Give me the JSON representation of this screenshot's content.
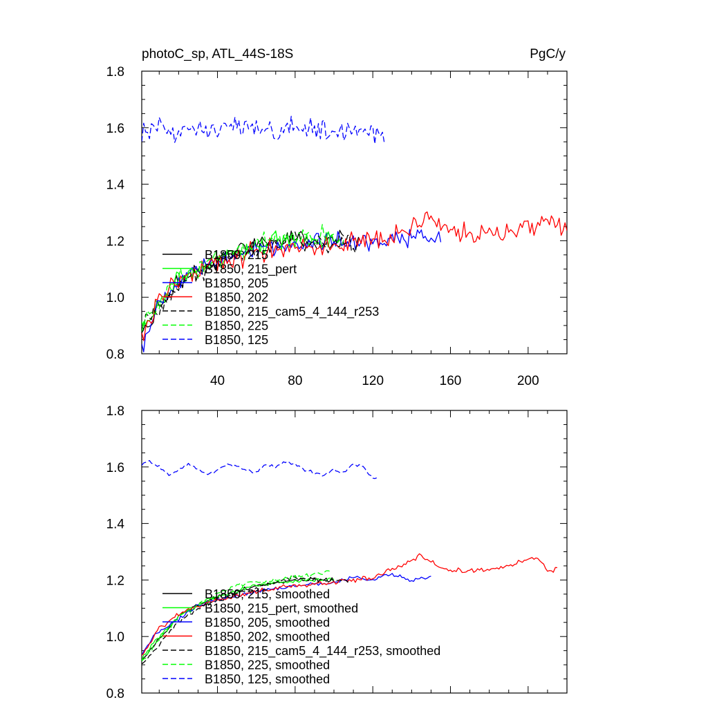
{
  "chart_data": [
    {
      "type": "line",
      "title": "photoC_sp, ATL_44S-18S",
      "units": "PgC/y",
      "xlabel": "",
      "ylabel": "",
      "xlim": [
        1,
        220
      ],
      "ylim": [
        0.8,
        1.8
      ],
      "xticks": [
        40,
        80,
        120,
        160,
        200
      ],
      "xtick_labels": [
        "40",
        "80",
        "120",
        "160",
        "200"
      ],
      "yticks": [
        0.8,
        1.0,
        1.2,
        1.4,
        1.6,
        1.8
      ],
      "ytick_labels": [
        "0.8",
        "1.0",
        "1.2",
        "1.4",
        "1.6",
        "1.8"
      ],
      "legend_position": "lower-left",
      "series": [
        {
          "name": "B1850, 215",
          "color": "#000000",
          "dash": "solid",
          "x_end": 105,
          "anchors": [
            [
              1,
              0.88
            ],
            [
              10,
              0.97
            ],
            [
              20,
              1.05
            ],
            [
              30,
              1.09
            ],
            [
              40,
              1.13
            ],
            [
              50,
              1.16
            ],
            [
              60,
              1.18
            ],
            [
              70,
              1.2
            ],
            [
              80,
              1.21
            ],
            [
              90,
              1.2
            ],
            [
              100,
              1.2
            ],
            [
              105,
              1.2
            ]
          ],
          "noise": 0.04
        },
        {
          "name": "B1850, 215_pert",
          "color": "#00ff00",
          "dash": "solid",
          "x_end": 105,
          "anchors": [
            [
              1,
              0.9
            ],
            [
              10,
              0.98
            ],
            [
              20,
              1.06
            ],
            [
              30,
              1.1
            ],
            [
              40,
              1.13
            ],
            [
              50,
              1.16
            ],
            [
              60,
              1.18
            ],
            [
              70,
              1.2
            ],
            [
              80,
              1.21
            ],
            [
              90,
              1.2
            ],
            [
              100,
              1.2
            ],
            [
              105,
              1.2
            ]
          ],
          "noise": 0.045
        },
        {
          "name": "B1850, 205",
          "color": "#0000ff",
          "dash": "solid",
          "x_end": 155,
          "anchors": [
            [
              1,
              0.82
            ],
            [
              10,
              0.98
            ],
            [
              20,
              1.05
            ],
            [
              30,
              1.1
            ],
            [
              40,
              1.13
            ],
            [
              60,
              1.17
            ],
            [
              80,
              1.19
            ],
            [
              100,
              1.2
            ],
            [
              120,
              1.2
            ],
            [
              140,
              1.21
            ],
            [
              155,
              1.21
            ]
          ],
          "noise": 0.04
        },
        {
          "name": "B1850, 202",
          "color": "#ff0000",
          "dash": "solid",
          "x_end": 220,
          "anchors": [
            [
              1,
              0.86
            ],
            [
              10,
              1.0
            ],
            [
              20,
              1.06
            ],
            [
              40,
              1.12
            ],
            [
              60,
              1.16
            ],
            [
              80,
              1.18
            ],
            [
              100,
              1.19
            ],
            [
              120,
              1.21
            ],
            [
              140,
              1.24
            ],
            [
              150,
              1.27
            ],
            [
              160,
              1.23
            ],
            [
              180,
              1.22
            ],
            [
              200,
              1.25
            ],
            [
              210,
              1.26
            ],
            [
              220,
              1.24
            ]
          ],
          "noise": 0.045
        },
        {
          "name": "B1850, 215_cam5_4_144_r253",
          "color": "#000000",
          "dash": "dashed",
          "x_end": 113,
          "anchors": [
            [
              1,
              0.9
            ],
            [
              10,
              0.96
            ],
            [
              20,
              1.05
            ],
            [
              30,
              1.08
            ],
            [
              40,
              1.12
            ],
            [
              50,
              1.15
            ],
            [
              60,
              1.17
            ],
            [
              70,
              1.19
            ],
            [
              80,
              1.21
            ],
            [
              90,
              1.19
            ],
            [
              100,
              1.19
            ],
            [
              113,
              1.19
            ]
          ],
          "noise": 0.04
        },
        {
          "name": "B1850, 225",
          "color": "#00ff00",
          "dash": "dashed",
          "x_end": 100,
          "anchors": [
            [
              1,
              0.9
            ],
            [
              10,
              0.98
            ],
            [
              20,
              1.06
            ],
            [
              30,
              1.1
            ],
            [
              40,
              1.14
            ],
            [
              50,
              1.17
            ],
            [
              60,
              1.19
            ],
            [
              70,
              1.2
            ],
            [
              80,
              1.21
            ],
            [
              90,
              1.22
            ],
            [
              100,
              1.22
            ]
          ],
          "noise": 0.04
        },
        {
          "name": "B1850, 125",
          "color": "#0000ff",
          "dash": "dashed",
          "x_end": 126,
          "anchors": [
            [
              1,
              1.58
            ],
            [
              10,
              1.61
            ],
            [
              20,
              1.58
            ],
            [
              30,
              1.6
            ],
            [
              40,
              1.59
            ],
            [
              50,
              1.6
            ],
            [
              60,
              1.6
            ],
            [
              70,
              1.58
            ],
            [
              80,
              1.61
            ],
            [
              90,
              1.59
            ],
            [
              100,
              1.58
            ],
            [
              110,
              1.6
            ],
            [
              120,
              1.58
            ],
            [
              126,
              1.57
            ]
          ],
          "noise": 0.045
        }
      ]
    },
    {
      "type": "line",
      "title": "",
      "units": "",
      "xlabel": "",
      "ylabel": "",
      "xlim": [
        1,
        220
      ],
      "ylim": [
        0.8,
        1.8
      ],
      "xticks": [
        40,
        80,
        120,
        160,
        200
      ],
      "xtick_labels": [],
      "yticks": [
        0.8,
        1.0,
        1.2,
        1.4,
        1.6,
        1.8
      ],
      "ytick_labels": [
        "0.8",
        "1.0",
        "1.2",
        "1.4",
        "1.6",
        "1.8"
      ],
      "legend_position": "lower-left",
      "series": [
        {
          "name": "B1850, 215, smoothed",
          "color": "#000000",
          "dash": "solid",
          "x_end": 100,
          "anchors": [
            [
              1,
              0.91
            ],
            [
              10,
              0.99
            ],
            [
              20,
              1.07
            ],
            [
              30,
              1.11
            ],
            [
              40,
              1.14
            ],
            [
              50,
              1.16
            ],
            [
              60,
              1.18
            ],
            [
              70,
              1.19
            ],
            [
              80,
              1.2
            ],
            [
              90,
              1.2
            ],
            [
              100,
              1.2
            ]
          ],
          "noise": 0.01
        },
        {
          "name": "B1850, 215_pert, smoothed",
          "color": "#00ff00",
          "dash": "solid",
          "x_end": 100,
          "anchors": [
            [
              1,
              0.92
            ],
            [
              10,
              1.0
            ],
            [
              20,
              1.07
            ],
            [
              30,
              1.11
            ],
            [
              40,
              1.14
            ],
            [
              50,
              1.16
            ],
            [
              60,
              1.18
            ],
            [
              70,
              1.19
            ],
            [
              80,
              1.2
            ],
            [
              90,
              1.2
            ],
            [
              100,
              1.2
            ]
          ],
          "noise": 0.01
        },
        {
          "name": "B1850, 205, smoothed",
          "color": "#0000ff",
          "dash": "solid",
          "x_end": 150,
          "anchors": [
            [
              1,
              0.93
            ],
            [
              8,
              1.01
            ],
            [
              20,
              1.06
            ],
            [
              30,
              1.11
            ],
            [
              40,
              1.13
            ],
            [
              60,
              1.16
            ],
            [
              80,
              1.18
            ],
            [
              100,
              1.19
            ],
            [
              110,
              1.21
            ],
            [
              120,
              1.2
            ],
            [
              130,
              1.22
            ],
            [
              140,
              1.2
            ],
            [
              150,
              1.21
            ]
          ],
          "noise": 0.008
        },
        {
          "name": "B1850, 202, smoothed",
          "color": "#ff0000",
          "dash": "solid",
          "x_end": 215,
          "anchors": [
            [
              1,
              0.93
            ],
            [
              10,
              1.03
            ],
            [
              20,
              1.08
            ],
            [
              40,
              1.13
            ],
            [
              60,
              1.16
            ],
            [
              80,
              1.18
            ],
            [
              100,
              1.19
            ],
            [
              120,
              1.21
            ],
            [
              135,
              1.25
            ],
            [
              145,
              1.29
            ],
            [
              155,
              1.24
            ],
            [
              170,
              1.23
            ],
            [
              190,
              1.25
            ],
            [
              205,
              1.28
            ],
            [
              210,
              1.23
            ],
            [
              215,
              1.24
            ]
          ],
          "noise": 0.01
        },
        {
          "name": "B1850, 215_cam5_4_144_r253, smoothed",
          "color": "#000000",
          "dash": "dashed",
          "x_end": 108,
          "anchors": [
            [
              1,
              0.9
            ],
            [
              10,
              0.97
            ],
            [
              20,
              1.05
            ],
            [
              30,
              1.1
            ],
            [
              40,
              1.13
            ],
            [
              50,
              1.15
            ],
            [
              60,
              1.17
            ],
            [
              70,
              1.19
            ],
            [
              80,
              1.21
            ],
            [
              90,
              1.2
            ],
            [
              100,
              1.2
            ],
            [
              108,
              1.2
            ]
          ],
          "noise": 0.01
        },
        {
          "name": "B1850, 225, smoothed",
          "color": "#00ff00",
          "dash": "dashed",
          "x_end": 98,
          "anchors": [
            [
              1,
              0.91
            ],
            [
              10,
              0.99
            ],
            [
              20,
              1.07
            ],
            [
              30,
              1.11
            ],
            [
              40,
              1.15
            ],
            [
              50,
              1.18
            ],
            [
              60,
              1.19
            ],
            [
              70,
              1.2
            ],
            [
              80,
              1.21
            ],
            [
              90,
              1.22
            ],
            [
              98,
              1.23
            ]
          ],
          "noise": 0.01
        },
        {
          "name": "B1850, 125, smoothed",
          "color": "#0000ff",
          "dash": "dashed",
          "x_end": 122,
          "anchors": [
            [
              1,
              1.61
            ],
            [
              5,
              1.62
            ],
            [
              10,
              1.6
            ],
            [
              15,
              1.57
            ],
            [
              20,
              1.59
            ],
            [
              25,
              1.61
            ],
            [
              30,
              1.59
            ],
            [
              35,
              1.57
            ],
            [
              40,
              1.59
            ],
            [
              45,
              1.61
            ],
            [
              50,
              1.6
            ],
            [
              55,
              1.59
            ],
            [
              60,
              1.58
            ],
            [
              65,
              1.61
            ],
            [
              70,
              1.6
            ],
            [
              75,
              1.62
            ],
            [
              80,
              1.61
            ],
            [
              85,
              1.59
            ],
            [
              90,
              1.58
            ],
            [
              95,
              1.57
            ],
            [
              100,
              1.59
            ],
            [
              105,
              1.58
            ],
            [
              110,
              1.61
            ],
            [
              115,
              1.6
            ],
            [
              120,
              1.56
            ],
            [
              122,
              1.56
            ]
          ],
          "noise": 0.006
        }
      ]
    }
  ]
}
